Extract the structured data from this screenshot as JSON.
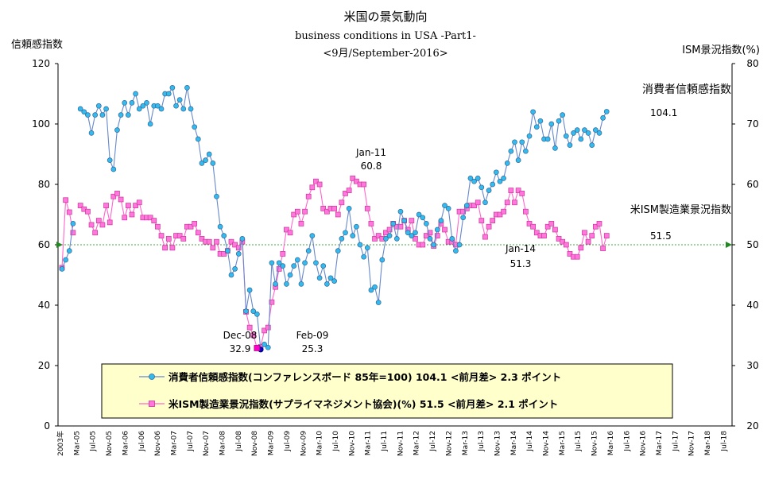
{
  "chart_data": {
    "type": "line",
    "title": "米国の景気動向",
    "subtitle": "business conditions in USA -Part1-",
    "date_line": "<9月/September-2016>",
    "y_left_label": "信頼感指数",
    "y_right_label": "ISM景況指数(%)",
    "y_left_ticks": [
      "0",
      "20",
      "40",
      "60",
      "80",
      "100",
      "120"
    ],
    "y_right_ticks": [
      "20",
      "30",
      "40",
      "50",
      "60",
      "70",
      "80"
    ],
    "ylim_left": [
      0,
      120
    ],
    "ylim_right": [
      20,
      80
    ],
    "reference_line": {
      "axis": "right",
      "value": 50,
      "color": "#44aa44"
    },
    "x_tick_labels": [
      "2003年",
      "Mar-05",
      "Jul-05",
      "Nov-05",
      "Mar-06",
      "Jul-06",
      "Nov-06",
      "Mar-07",
      "Jul-07",
      "Nov-07",
      "Mar-08",
      "Jul-08",
      "Nov-08",
      "Mar-09",
      "Jul-09",
      "Nov-09",
      "Mar-10",
      "Jul-10",
      "Nov-10",
      "Mar-11",
      "Jul-11",
      "Nov-11",
      "Mar-12",
      "Jul-12",
      "Nov-12",
      "Mar-13",
      "Jul-13",
      "Nov-13",
      "Mar-14",
      "Jul-14",
      "Nov-14",
      "Mar-15",
      "Jul-15",
      "Nov-15",
      "Mar-16",
      "Jul-16",
      "Nov-16",
      "Mar-17",
      "Jul-17",
      "Nov-17",
      "Mar-18",
      "Jul-18"
    ],
    "series": [
      {
        "name": "消費者信頼感指数",
        "axis": "left",
        "color": "#33bbee",
        "line_color": "#6688cc",
        "marker": "circle",
        "end_label": "消費者信頼感指数",
        "end_value_label": "104.1",
        "values": [
          52,
          55,
          58,
          67,
          null,
          105,
          104,
          103,
          97,
          103,
          106,
          103,
          105,
          88,
          85,
          98,
          103,
          107,
          103,
          107,
          110,
          105,
          106,
          107,
          100,
          106,
          106,
          105,
          110,
          110,
          112,
          106,
          108,
          105,
          112,
          105,
          99,
          95,
          87,
          88,
          90,
          87,
          76,
          66,
          63,
          58,
          50,
          52,
          57,
          62,
          38,
          45,
          38,
          37,
          25.3,
          27,
          26,
          54,
          47,
          54,
          53,
          47,
          50,
          53,
          55,
          47,
          54,
          58,
          63,
          54,
          49,
          53,
          47,
          49,
          48,
          58,
          62,
          64,
          72,
          63,
          66,
          60,
          56,
          59,
          45,
          46,
          40.9,
          55,
          62,
          63,
          67,
          62,
          71,
          68,
          64,
          63,
          64,
          70,
          69,
          67,
          62,
          60,
          65,
          68,
          73,
          72,
          62,
          58,
          60,
          69,
          73,
          82,
          81,
          82,
          79,
          74,
          78,
          80,
          84,
          81,
          82,
          87,
          91,
          94,
          88,
          94,
          91,
          96,
          104,
          99,
          101,
          95,
          95,
          100,
          92,
          101,
          103,
          96,
          93,
          97,
          98,
          95,
          98,
          97,
          93,
          98,
          97,
          102,
          104.1
        ]
      },
      {
        "name": "米ISM製造業景況指数",
        "axis": "right",
        "color": "#ff77dd",
        "line_color": "#ff66cc",
        "marker": "square",
        "end_label": "米ISM製造業景況指数",
        "end_value_label": "51.5",
        "values": [
          46.2,
          57.4,
          55.4,
          52.0,
          null,
          56.5,
          55.9,
          55.5,
          53.3,
          52.0,
          54.0,
          53.3,
          56.5,
          53.7,
          58.0,
          58.5,
          57.5,
          54.5,
          56.5,
          55.0,
          56.5,
          57.0,
          54.5,
          54.5,
          54.5,
          54.0,
          53.0,
          51.5,
          49.5,
          51.0,
          49.5,
          51.5,
          51.5,
          51.0,
          53.0,
          53.0,
          53.5,
          52.0,
          51.0,
          50.5,
          50.5,
          49.5,
          50.5,
          48.5,
          48.5,
          49.0,
          50.5,
          50.0,
          49.5,
          50.5,
          38.9,
          36.3,
          35.0,
          32.9,
          33.1,
          35.8,
          36.3,
          40.5,
          43.0,
          46.0,
          48.5,
          52.5,
          52.0,
          55.0,
          55.5,
          53.5,
          55.5,
          58.0,
          59.5,
          60.5,
          60.0,
          56.0,
          55.5,
          56.0,
          56.0,
          55.0,
          57.0,
          58.5,
          59.0,
          61.0,
          60.5,
          60.0,
          60.0,
          56.0,
          53.5,
          51.0,
          51.5,
          51.0,
          52.0,
          52.5,
          53.5,
          53.0,
          53.0,
          54.0,
          52.5,
          54.0,
          51.0,
          50.0,
          50.0,
          51.5,
          52.0,
          49.8,
          51.5,
          53.5,
          52.5,
          50.5,
          50.5,
          50.0,
          55.5,
          55.5,
          56.0,
          56.5,
          56.5,
          57.0,
          54.0,
          51.3,
          53.0,
          54.0,
          55.0,
          55.0,
          55.5,
          57.0,
          59.0,
          57.0,
          59.0,
          58.5,
          55.5,
          53.5,
          53.0,
          52.0,
          51.5,
          51.5,
          53.0,
          53.5,
          52.5,
          51.0,
          50.5,
          50.0,
          48.5,
          48.0,
          48.0,
          49.5,
          52.0,
          50.5,
          51.5,
          53.0,
          53.5,
          49.4,
          51.5
        ]
      }
    ],
    "annotations": [
      {
        "label": "Dec-08",
        "value": "32.9"
      },
      {
        "label": "Feb-09",
        "value": "25.3"
      },
      {
        "label": "Jan-11",
        "value": "60.8"
      },
      {
        "label": "Jan-14",
        "value": "51.3"
      }
    ],
    "legend": {
      "placement": "bottom-center",
      "items": [
        {
          "text": "消費者信頼感指数(コンファレンスボード 85年=100) 104.1 <前月差> 2.3 ポイント"
        },
        {
          "text": "米ISM製造業景況指数(サプライマネジメント協会)(%) 51.5 <前月差> 2.1 ポイント"
        }
      ]
    },
    "grid": false
  }
}
